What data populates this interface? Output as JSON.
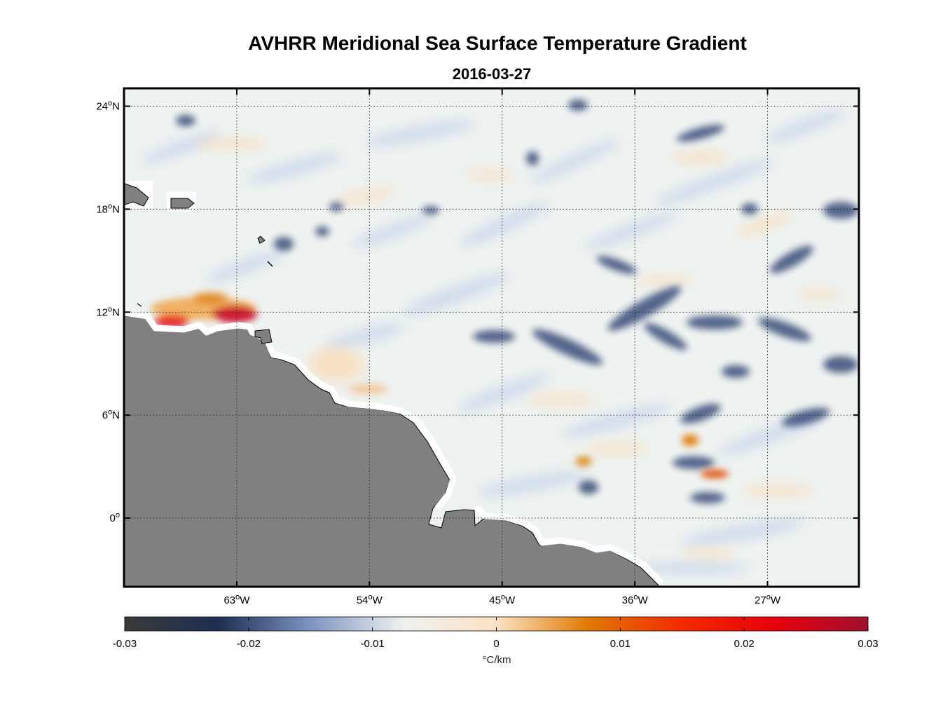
{
  "title": "AVHRR Meridional Sea Surface Temperature Gradient",
  "subtitle": "2016-03-27",
  "map": {
    "lon_range": [
      -70.6,
      -20.8
    ],
    "lat_range": [
      -4.0,
      25.0
    ],
    "lon_ticks": [
      {
        "value": -63,
        "label": "63°W"
      },
      {
        "value": -54,
        "label": "54°W"
      },
      {
        "value": -45,
        "label": "45°W"
      },
      {
        "value": -36,
        "label": "36°W"
      },
      {
        "value": -27,
        "label": "27°W"
      }
    ],
    "lat_ticks": [
      {
        "value": 24,
        "label": "24°N"
      },
      {
        "value": 18,
        "label": "18°N"
      },
      {
        "value": 12,
        "label": "12°N"
      },
      {
        "value": 6,
        "label": "6°N"
      },
      {
        "value": 0,
        "label": "0°"
      }
    ],
    "land_color": "#808080",
    "ocean_color": "#eef2f0"
  },
  "colorbar": {
    "min": -0.03,
    "max": 0.03,
    "tick_labels": [
      "-0.03",
      "-0.02",
      "-0.01",
      "0",
      "0.01",
      "0.02",
      "0.03"
    ],
    "unit": "°C/km",
    "stops": [
      "#3a3a3a",
      "#1e2e52",
      "#7e93c2",
      "#eef2ef",
      "#fbe2c4",
      "#e07800",
      "#f42a00",
      "#e8000c",
      "#a0102f"
    ]
  }
}
